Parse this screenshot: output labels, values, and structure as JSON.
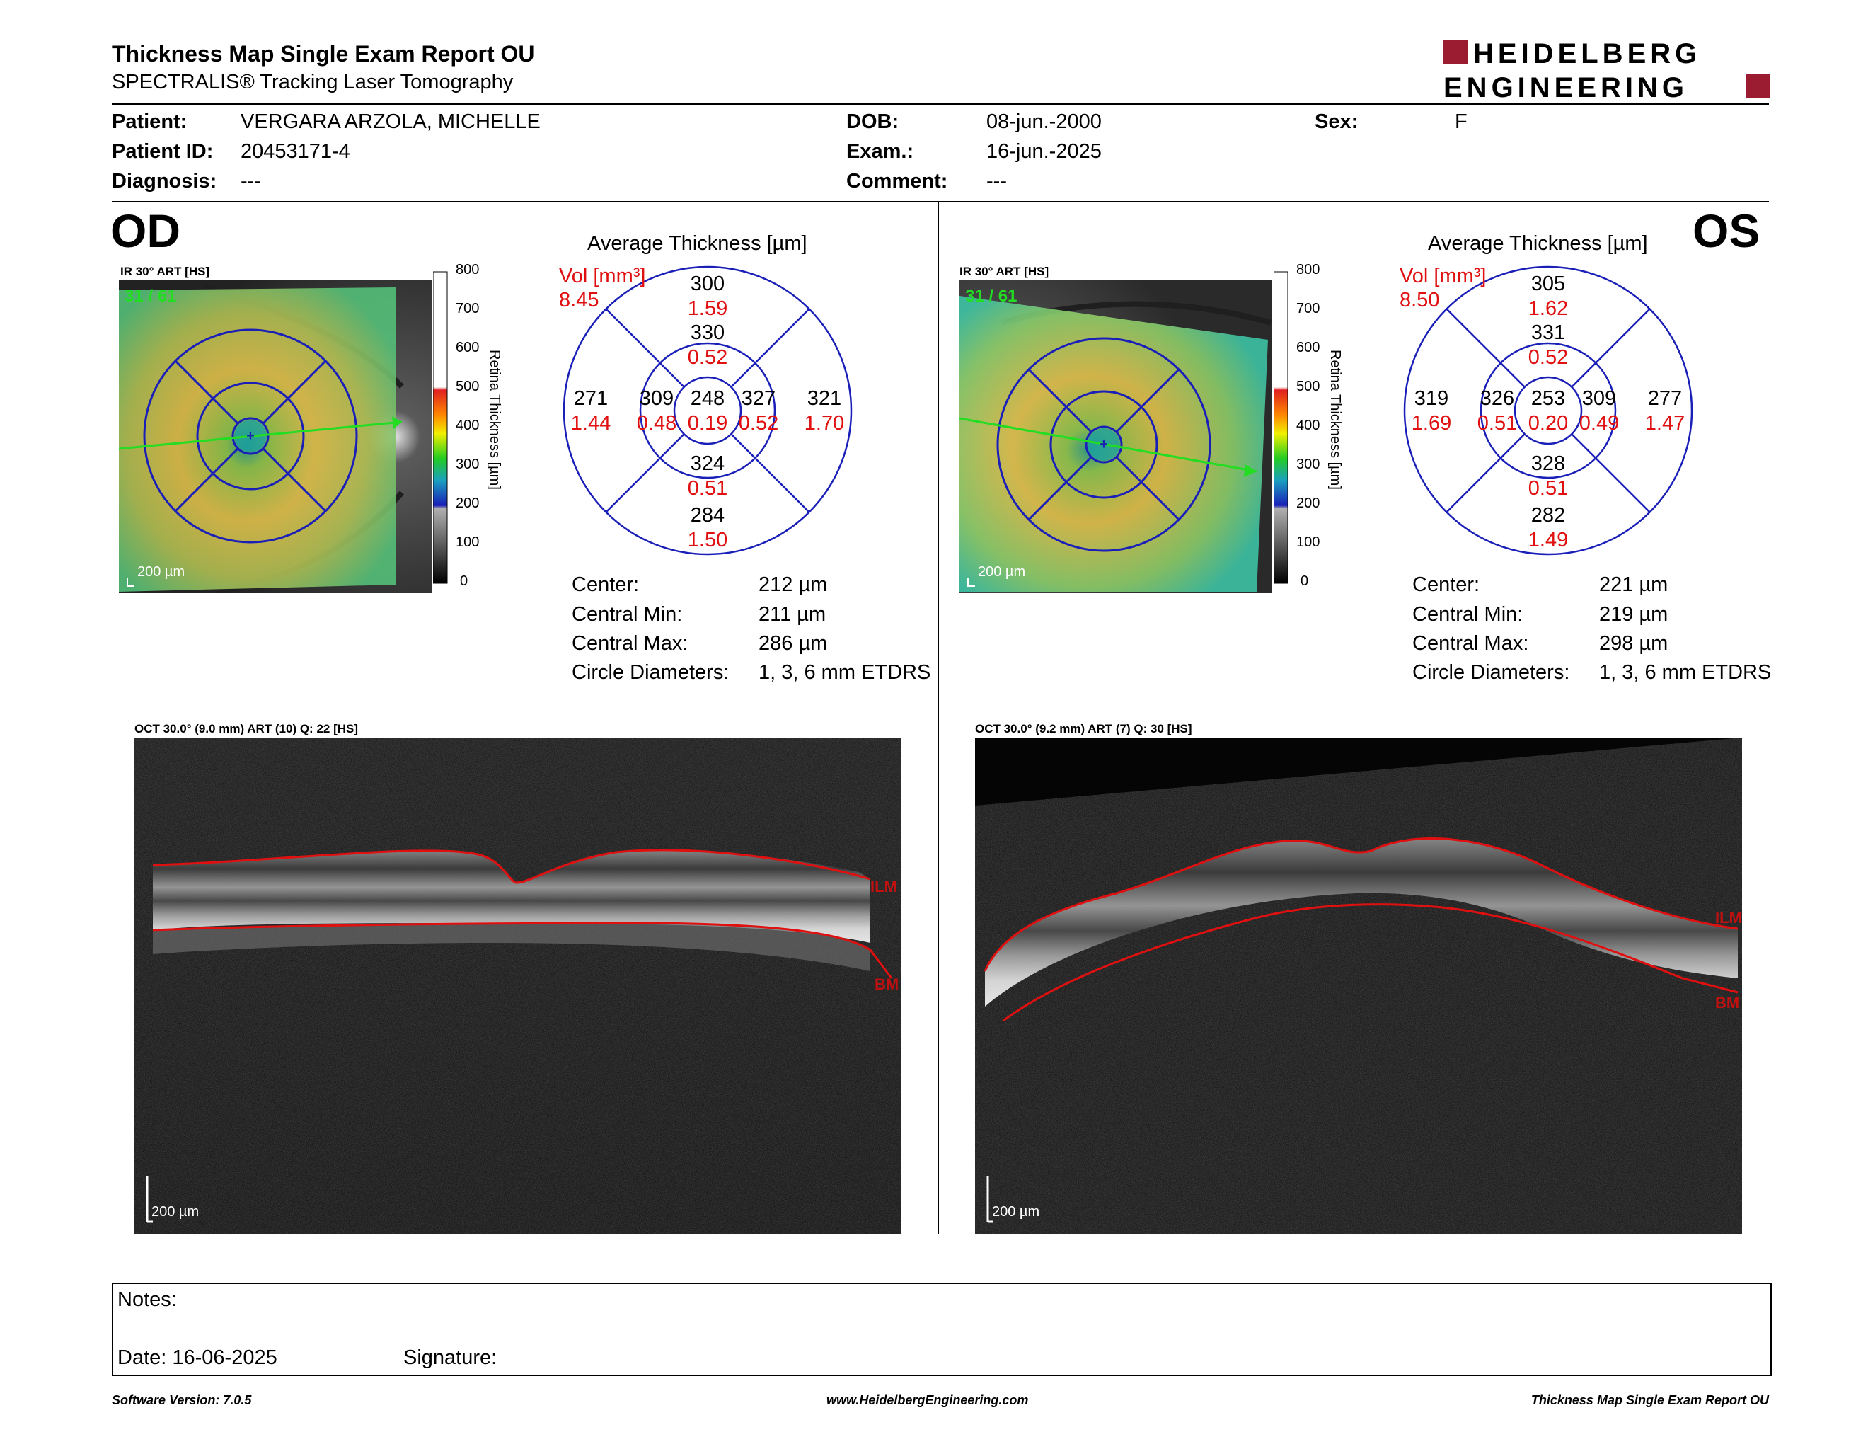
{
  "header": {
    "title": "Thickness Map Single Exam Report OU",
    "subtitle": "SPECTRALIS® Tracking Laser Tomography",
    "logo_line1": "HEIDELBERG",
    "logo_line2": "ENGINEERING",
    "brand_color": "#9b1b30"
  },
  "patient": {
    "patient_label": "Patient:",
    "patient_value": "VERGARA ARZOLA, MICHELLE",
    "id_label": "Patient ID:",
    "id_value": "20453171-4",
    "diagnosis_label": "Diagnosis:",
    "diagnosis_value": "---",
    "dob_label": "DOB:",
    "dob_value": "08-jun.-2000",
    "exam_label": "Exam.:",
    "exam_value": "16-jun.-2025",
    "comment_label": "Comment:",
    "comment_value": "---",
    "sex_label": "Sex:",
    "sex_value": "F"
  },
  "od": {
    "eye_label": "OD",
    "ir_caption": "IR 30° ART [HS]",
    "frame_counter": "31 / 61",
    "scale_bar": "200 µm",
    "avg_title": "Average Thickness [µm]",
    "vol_label": "Vol [mm³]",
    "total_volume": "8.45",
    "sectors": {
      "center": {
        "thickness": "248",
        "volume": "0.19"
      },
      "inner_superior": {
        "thickness": "330",
        "volume": "0.52"
      },
      "inner_nasal_left": {
        "thickness": "309",
        "volume": "0.48"
      },
      "inner_right": {
        "thickness": "327",
        "volume": "0.52"
      },
      "inner_inferior": {
        "thickness": "324",
        "volume": "0.51"
      },
      "outer_superior": {
        "thickness": "300",
        "volume": "1.59"
      },
      "outer_left": {
        "thickness": "271",
        "volume": "1.44"
      },
      "outer_right": {
        "thickness": "321",
        "volume": "1.70"
      },
      "outer_inferior": {
        "thickness": "284",
        "volume": "1.50"
      }
    },
    "stats": {
      "center_label": "Center:",
      "center_value": "212 µm",
      "min_label": "Central Min:",
      "min_value": "211 µm",
      "max_label": "Central Max:",
      "max_value": "286 µm",
      "diam_label": "Circle Diameters:",
      "diam_value": "1, 3, 6 mm ETDRS"
    },
    "oct_caption": "OCT 30.0° (9.0 mm) ART (10) Q: 22 [HS]",
    "oct_scale": "200 µm",
    "ilm_label": "ILM",
    "bm_label": "BM"
  },
  "os": {
    "eye_label": "OS",
    "ir_caption": "IR 30° ART [HS]",
    "frame_counter": "31 / 61",
    "scale_bar": "200 µm",
    "avg_title": "Average Thickness [µm]",
    "vol_label": "Vol [mm³]",
    "total_volume": "8.50",
    "sectors": {
      "center": {
        "thickness": "253",
        "volume": "0.20"
      },
      "inner_superior": {
        "thickness": "331",
        "volume": "0.52"
      },
      "inner_left": {
        "thickness": "326",
        "volume": "0.51"
      },
      "inner_right": {
        "thickness": "309",
        "volume": "0.49"
      },
      "inner_inferior": {
        "thickness": "328",
        "volume": "0.51"
      },
      "outer_superior": {
        "thickness": "305",
        "volume": "1.62"
      },
      "outer_left": {
        "thickness": "319",
        "volume": "1.69"
      },
      "outer_right": {
        "thickness": "277",
        "volume": "1.47"
      },
      "outer_inferior": {
        "thickness": "282",
        "volume": "1.49"
      }
    },
    "stats": {
      "center_label": "Center:",
      "center_value": "221 µm",
      "min_label": "Central Min:",
      "min_value": "219 µm",
      "max_label": "Central Max:",
      "max_value": "298 µm",
      "diam_label": "Circle Diameters:",
      "diam_value": "1, 3, 6 mm ETDRS"
    },
    "oct_caption": "OCT 30.0° (9.2 mm) ART (7) Q: 30 [HS]",
    "oct_scale": "200 µm",
    "ilm_label": "ILM",
    "bm_label": "BM"
  },
  "color_scale": {
    "title": "Retina Thickness [µm]",
    "ticks": [
      "800",
      "700",
      "600",
      "500",
      "400",
      "300",
      "200",
      "100",
      "0"
    ]
  },
  "notes": {
    "notes_label": "Notes:",
    "date_label": "Date: 16-06-2025",
    "signature_label": "Signature:"
  },
  "footer": {
    "software": "Software Version: 7.0.5",
    "website": "www.HeidelbergEngineering.com",
    "report_name": "Thickness Map Single Exam Report OU"
  }
}
